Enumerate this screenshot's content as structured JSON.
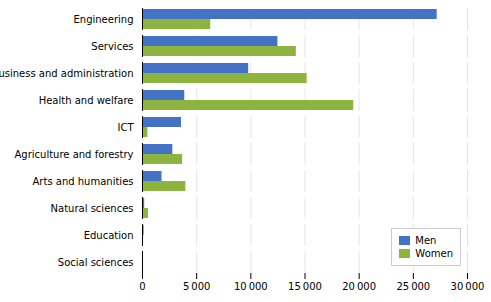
{
  "chart_data": {
    "type": "bar",
    "orientation": "horizontal",
    "categories": [
      "Social sciences",
      "Education",
      "Natural sciences",
      "Arts and humanities",
      "Agriculture and forestry",
      "ICT",
      "Health and welfare",
      "Business and administration",
      "Services",
      "Engineering"
    ],
    "series": [
      {
        "name": "Men",
        "color": "#4472c4",
        "values": [
          50,
          150,
          200,
          1800,
          2800,
          3600,
          3900,
          9800,
          12500,
          27200
        ]
      },
      {
        "name": "Women",
        "color": "#8db43e",
        "values": [
          30,
          100,
          550,
          4000,
          3700,
          500,
          19500,
          15200,
          14200,
          6300
        ]
      }
    ],
    "xlim": [
      0,
      30000
    ],
    "xticks": [
      0,
      {
        "value": 5000,
        "label": "5 000"
      },
      {
        "value": 10000,
        "label": "10 000"
      },
      {
        "value": 15000,
        "label": "15 000"
      },
      {
        "value": 20000,
        "label": "20 000"
      },
      {
        "value": 25000,
        "label": "25 000"
      },
      {
        "value": 30000,
        "label": "30 000"
      }
    ],
    "grid": true,
    "legend": "lower right"
  }
}
